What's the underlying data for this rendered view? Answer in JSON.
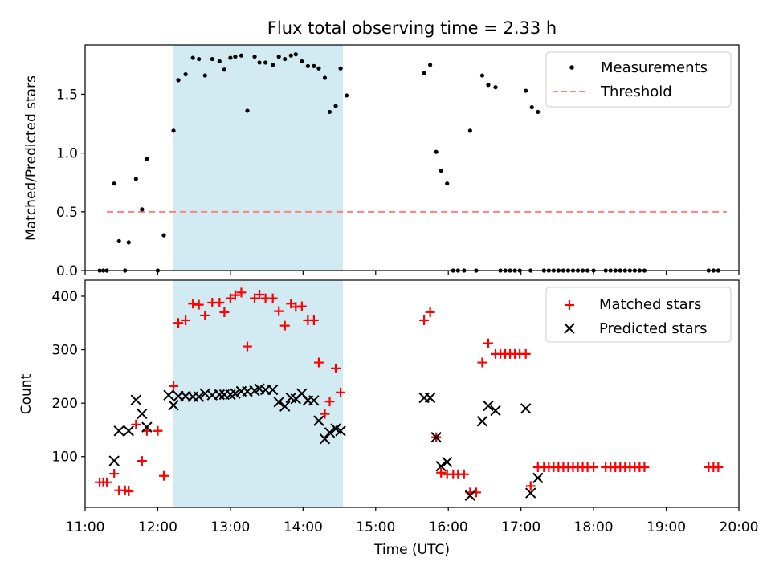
{
  "chart_data": [
    {
      "type": "scatter",
      "title": "Flux total observing time = 2.33 h",
      "xlabel": "",
      "ylabel": "Matched/Predicted stars",
      "xlim": [
        "11:00",
        "20:00"
      ],
      "ylim": [
        0,
        1.92
      ],
      "yticks": [
        0.0,
        0.5,
        1.0,
        1.5
      ],
      "ytick_labels": [
        "0.0",
        "0.5",
        "1.0",
        "1.5"
      ],
      "shaded_interval": [
        "12:13",
        "14:33"
      ],
      "shade_color": "#add8e6",
      "legend_position": "top-right",
      "series": [
        {
          "name": "Measurements",
          "marker": "dot",
          "color": "#000000",
          "points": [
            [
              "11:12",
              0
            ],
            [
              "11:15",
              0
            ],
            [
              "11:18",
              0
            ],
            [
              "11:24",
              0.74
            ],
            [
              "11:28",
              0.25
            ],
            [
              "11:33",
              0
            ],
            [
              "11:36",
              0.24
            ],
            [
              "11:42",
              0.78
            ],
            [
              "11:47",
              0.52
            ],
            [
              "11:51",
              0.95
            ],
            [
              "12:00",
              0
            ],
            [
              "12:05",
              0.3
            ],
            [
              "12:13",
              1.19
            ],
            [
              "12:17",
              1.62
            ],
            [
              "12:23",
              1.67
            ],
            [
              "12:29",
              1.81
            ],
            [
              "12:34",
              1.8
            ],
            [
              "12:39",
              1.66
            ],
            [
              "12:45",
              1.8
            ],
            [
              "12:51",
              1.78
            ],
            [
              "12:55",
              1.71
            ],
            [
              "13:00",
              1.81
            ],
            [
              "13:04",
              1.82
            ],
            [
              "13:09",
              1.83
            ],
            [
              "13:14",
              1.36
            ],
            [
              "13:20",
              1.82
            ],
            [
              "13:24",
              1.77
            ],
            [
              "13:29",
              1.77
            ],
            [
              "13:35",
              1.75
            ],
            [
              "13:40",
              1.82
            ],
            [
              "13:45",
              1.8
            ],
            [
              "13:50",
              1.83
            ],
            [
              "13:54",
              1.84
            ],
            [
              "13:59",
              1.78
            ],
            [
              "14:04",
              1.74
            ],
            [
              "14:09",
              1.74
            ],
            [
              "14:13",
              1.72
            ],
            [
              "14:18",
              1.64
            ],
            [
              "14:22",
              1.35
            ],
            [
              "14:27",
              1.4
            ],
            [
              "14:31",
              1.72
            ],
            [
              "14:36",
              1.49
            ],
            [
              "15:40",
              1.68
            ],
            [
              "15:45",
              1.75
            ],
            [
              "15:50",
              1.01
            ],
            [
              "15:54",
              0.85
            ],
            [
              "15:59",
              0.74
            ],
            [
              "16:04",
              0
            ],
            [
              "16:08",
              0
            ],
            [
              "16:13",
              0
            ],
            [
              "16:18",
              1.19
            ],
            [
              "16:23",
              0
            ],
            [
              "16:28",
              1.66
            ],
            [
              "16:33",
              1.58
            ],
            [
              "16:39",
              1.56
            ],
            [
              "16:43",
              0
            ],
            [
              "16:47",
              0
            ],
            [
              "16:51",
              0
            ],
            [
              "16:55",
              0
            ],
            [
              "16:59",
              0
            ],
            [
              "17:04",
              1.53
            ],
            [
              "17:08",
              0
            ],
            [
              "17:09",
              1.39
            ],
            [
              "17:14",
              1.35
            ],
            [
              "17:19",
              0
            ],
            [
              "17:23",
              0
            ],
            [
              "17:27",
              0
            ],
            [
              "17:31",
              0
            ],
            [
              "17:35",
              0
            ],
            [
              "17:39",
              0
            ],
            [
              "17:43",
              0
            ],
            [
              "17:47",
              0
            ],
            [
              "17:51",
              0
            ],
            [
              "17:55",
              0
            ],
            [
              "18:00",
              0
            ],
            [
              "18:10",
              0
            ],
            [
              "18:14",
              0
            ],
            [
              "18:18",
              0
            ],
            [
              "18:22",
              0
            ],
            [
              "18:26",
              0
            ],
            [
              "18:30",
              0
            ],
            [
              "18:34",
              0
            ],
            [
              "18:38",
              0
            ],
            [
              "18:42",
              0
            ],
            [
              "19:35",
              0
            ],
            [
              "19:39",
              0
            ],
            [
              "19:43",
              0
            ]
          ]
        },
        {
          "name": "Threshold",
          "style": "dashed",
          "color": "#ff7f7f",
          "points": [
            [
              "11:18",
              0.5
            ],
            [
              "19:50",
              0.5
            ]
          ]
        }
      ]
    },
    {
      "type": "scatter",
      "title": "",
      "xlabel": "Time (UTC)",
      "ylabel": "Count",
      "xlim": [
        "11:00",
        "20:00"
      ],
      "ylim": [
        5,
        430
      ],
      "xticks": [
        "11:00",
        "12:00",
        "13:00",
        "14:00",
        "15:00",
        "16:00",
        "17:00",
        "18:00",
        "19:00",
        "20:00"
      ],
      "yticks": [
        100,
        200,
        300,
        400
      ],
      "ytick_labels": [
        "100",
        "200",
        "300",
        "400"
      ],
      "shaded_interval": [
        "12:13",
        "14:33"
      ],
      "shade_color": "#add8e6",
      "legend_position": "top-right",
      "series": [
        {
          "name": "Matched stars",
          "marker": "plus",
          "color": "#ff0000",
          "points": [
            [
              "11:12",
              52
            ],
            [
              "11:15",
              52
            ],
            [
              "11:18",
              52
            ],
            [
              "11:24",
              68
            ],
            [
              "11:28",
              37
            ],
            [
              "11:33",
              37
            ],
            [
              "11:36",
              35
            ],
            [
              "11:42",
              160
            ],
            [
              "11:47",
              92
            ],
            [
              "11:51",
              148
            ],
            [
              "12:00",
              148
            ],
            [
              "12:05",
              64
            ],
            [
              "12:13",
              232
            ],
            [
              "12:17",
              350
            ],
            [
              "12:23",
              355
            ],
            [
              "12:29",
              386
            ],
            [
              "12:34",
              384
            ],
            [
              "12:39",
              364
            ],
            [
              "12:45",
              388
            ],
            [
              "12:51",
              388
            ],
            [
              "12:55",
              370
            ],
            [
              "13:00",
              396
            ],
            [
              "13:04",
              402
            ],
            [
              "13:09",
              407
            ],
            [
              "13:14",
              306
            ],
            [
              "13:20",
              396
            ],
            [
              "13:24",
              403
            ],
            [
              "13:29",
              396
            ],
            [
              "13:35",
              396
            ],
            [
              "13:40",
              372
            ],
            [
              "13:45",
              345
            ],
            [
              "13:50",
              386
            ],
            [
              "13:54",
              380
            ],
            [
              "13:59",
              381
            ],
            [
              "14:04",
              355
            ],
            [
              "14:09",
              355
            ],
            [
              "14:13",
              276
            ],
            [
              "14:18",
              180
            ],
            [
              "14:22",
              203
            ],
            [
              "14:27",
              265
            ],
            [
              "14:31",
              220
            ],
            [
              "15:40",
              355
            ],
            [
              "15:45",
              370
            ],
            [
              "15:50",
              136
            ],
            [
              "15:54",
              70
            ],
            [
              "15:59",
              67
            ],
            [
              "16:04",
              67
            ],
            [
              "16:08",
              67
            ],
            [
              "16:13",
              67
            ],
            [
              "16:18",
              33
            ],
            [
              "16:23",
              33
            ],
            [
              "16:28",
              276
            ],
            [
              "16:33",
              312
            ],
            [
              "16:39",
              292
            ],
            [
              "16:43",
              292
            ],
            [
              "16:47",
              292
            ],
            [
              "16:51",
              292
            ],
            [
              "16:55",
              292
            ],
            [
              "16:59",
              292
            ],
            [
              "17:04",
              292
            ],
            [
              "17:08",
              45
            ],
            [
              "17:14",
              80
            ],
            [
              "17:19",
              80
            ],
            [
              "17:23",
              80
            ],
            [
              "17:27",
              80
            ],
            [
              "17:31",
              80
            ],
            [
              "17:35",
              80
            ],
            [
              "17:39",
              80
            ],
            [
              "17:43",
              80
            ],
            [
              "17:47",
              80
            ],
            [
              "17:51",
              80
            ],
            [
              "17:55",
              80
            ],
            [
              "18:00",
              80
            ],
            [
              "18:10",
              80
            ],
            [
              "18:14",
              80
            ],
            [
              "18:18",
              80
            ],
            [
              "18:22",
              80
            ],
            [
              "18:26",
              80
            ],
            [
              "18:30",
              80
            ],
            [
              "18:34",
              80
            ],
            [
              "18:38",
              80
            ],
            [
              "18:42",
              80
            ],
            [
              "19:35",
              80
            ],
            [
              "19:39",
              80
            ],
            [
              "19:43",
              80
            ]
          ]
        },
        {
          "name": "Predicted stars",
          "marker": "cross",
          "color": "#000000",
          "points": [
            [
              "11:24",
              92
            ],
            [
              "11:28",
              148
            ],
            [
              "11:36",
              148
            ],
            [
              "11:42",
              206
            ],
            [
              "11:47",
              180
            ],
            [
              "11:51",
              155
            ],
            [
              "12:09",
              215
            ],
            [
              "12:13",
              196
            ],
            [
              "12:17",
              213
            ],
            [
              "12:23",
              213
            ],
            [
              "12:29",
              212
            ],
            [
              "12:34",
              212
            ],
            [
              "12:39",
              218
            ],
            [
              "12:45",
              215
            ],
            [
              "12:51",
              216
            ],
            [
              "12:55",
              216
            ],
            [
              "13:00",
              216
            ],
            [
              "13:04",
              218
            ],
            [
              "13:09",
              222
            ],
            [
              "13:14",
              222
            ],
            [
              "13:20",
              223
            ],
            [
              "13:24",
              227
            ],
            [
              "13:29",
              225
            ],
            [
              "13:35",
              225
            ],
            [
              "13:40",
              202
            ],
            [
              "13:45",
              194
            ],
            [
              "13:50",
              210
            ],
            [
              "13:54",
              208
            ],
            [
              "13:59",
              218
            ],
            [
              "14:04",
              205
            ],
            [
              "14:09",
              205
            ],
            [
              "14:13",
              167
            ],
            [
              "14:18",
              133
            ],
            [
              "14:22",
              145
            ],
            [
              "14:27",
              152
            ],
            [
              "14:31",
              148
            ],
            [
              "15:40",
              210
            ],
            [
              "15:45",
              210
            ],
            [
              "15:50",
              136
            ],
            [
              "15:54",
              82
            ],
            [
              "15:59",
              90
            ],
            [
              "16:18",
              27
            ],
            [
              "16:28",
              166
            ],
            [
              "16:33",
              195
            ],
            [
              "16:39",
              186
            ],
            [
              "17:04",
              190
            ],
            [
              "17:08",
              32
            ],
            [
              "17:14",
              60
            ]
          ]
        }
      ]
    }
  ]
}
